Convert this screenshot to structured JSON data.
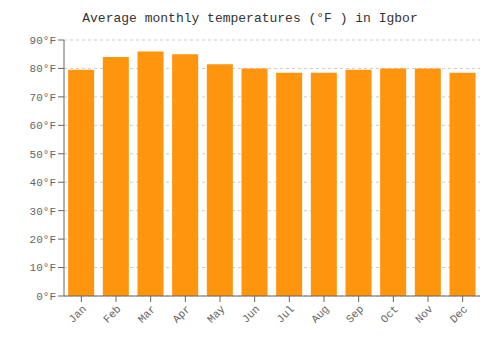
{
  "chart_data": {
    "type": "bar",
    "title": "Average monthly temperatures (°F ) in Igbor",
    "categories": [
      "Jan",
      "Feb",
      "Mar",
      "Apr",
      "May",
      "Jun",
      "Jul",
      "Aug",
      "Sep",
      "Oct",
      "Nov",
      "Dec"
    ],
    "values": [
      79.5,
      84.0,
      86.0,
      85.0,
      81.5,
      80.0,
      78.5,
      78.5,
      79.5,
      80.0,
      80.0,
      78.5
    ],
    "color": "#ff940d",
    "ylim": [
      0,
      90
    ],
    "yticks": [
      {
        "value": 0,
        "label": "0°F"
      },
      {
        "value": 10,
        "label": "10°F"
      },
      {
        "value": 20,
        "label": "20°F"
      },
      {
        "value": 30,
        "label": "30°F"
      },
      {
        "value": 40,
        "label": "40°F"
      },
      {
        "value": 50,
        "label": "50°F"
      },
      {
        "value": 60,
        "label": "60°F"
      },
      {
        "value": 70,
        "label": "70°F"
      },
      {
        "value": 80,
        "label": "80°F"
      },
      {
        "value": 90,
        "label": "90°F"
      }
    ],
    "grid": true
  }
}
